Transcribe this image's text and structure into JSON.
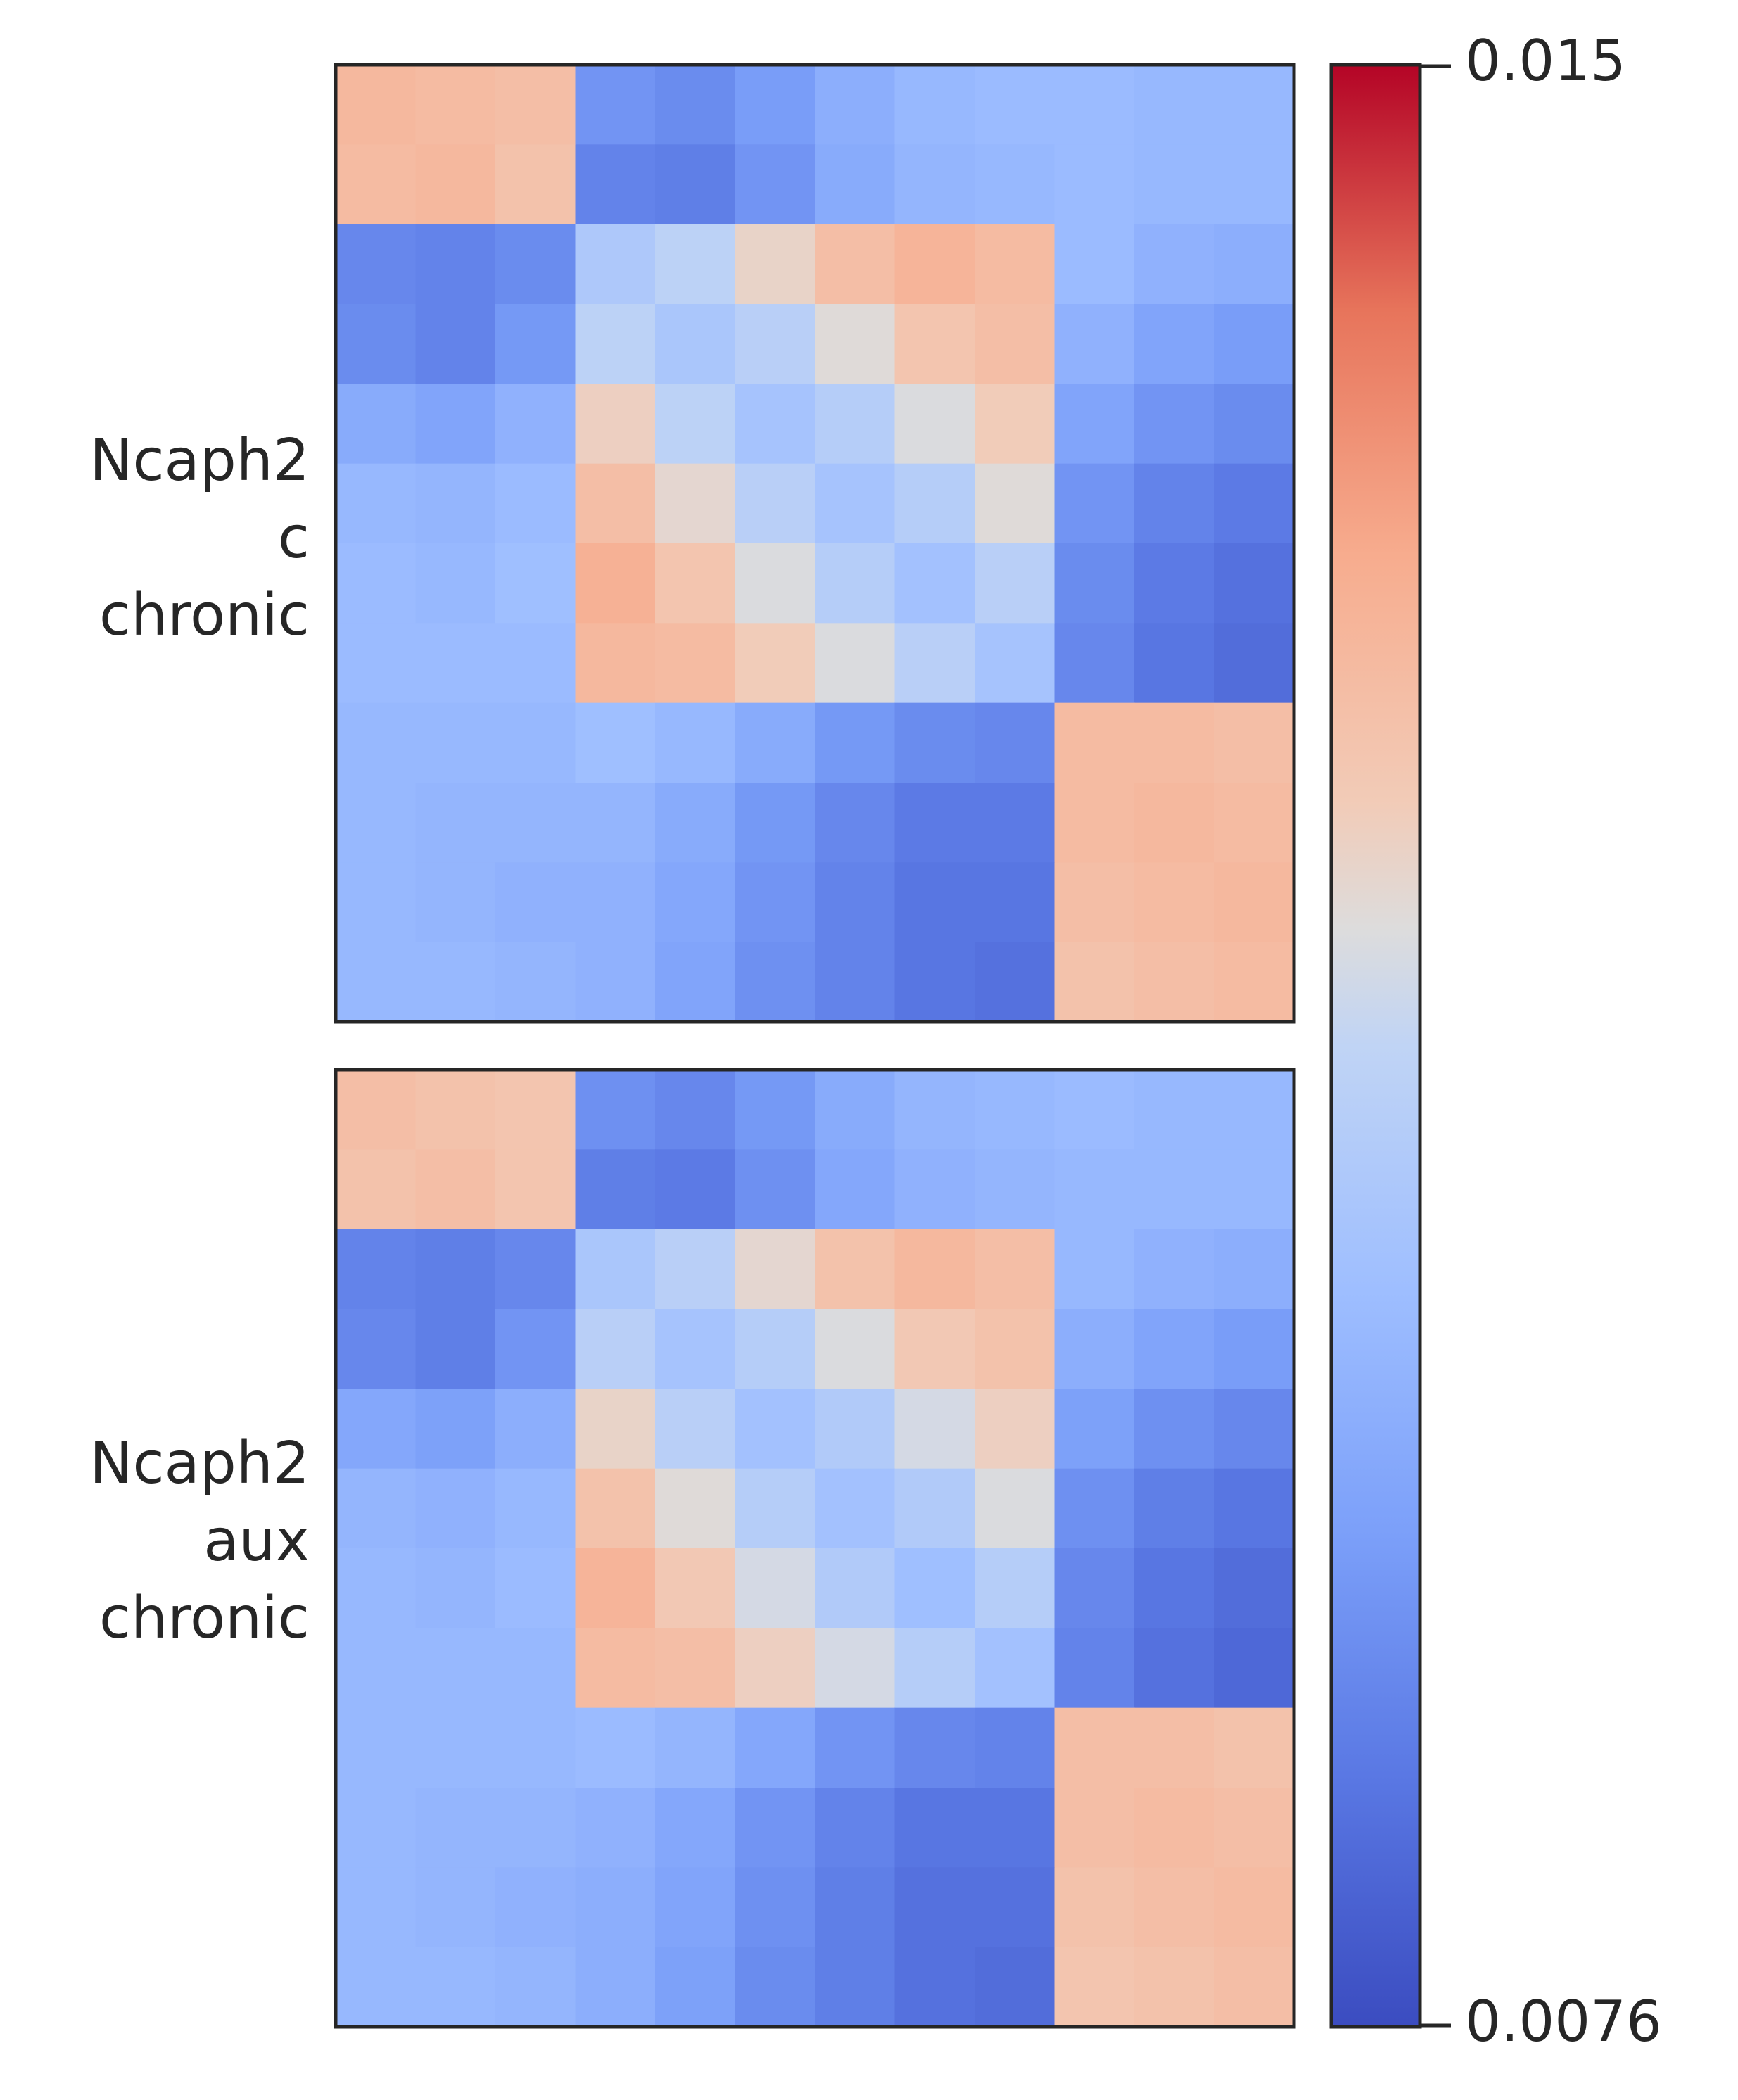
{
  "panels": [
    {
      "label_lines": [
        "Ncaph2",
        "c",
        "chronic"
      ]
    },
    {
      "label_lines": [
        "Ncaph2",
        "aux",
        "chronic"
      ]
    }
  ],
  "colorbar": {
    "max_label": "0.015",
    "min_label": "0.0076",
    "colormap": "coolwarm",
    "low_color": "#3b4cc0",
    "mid_color": "#dddddd",
    "high_color": "#b40426"
  },
  "chart_data": [
    {
      "type": "heatmap",
      "title": "",
      "row_label": "Ncaph2 c chronic",
      "xlabel": "",
      "ylabel": "",
      "vmin": 0.0076,
      "vmax": 0.015,
      "colormap": "coolwarm",
      "structure": "three-domain pileup (square domain top-left, triangular domain center with corner dots, square domain bottom-right)",
      "values_coarse": [
        [
          0.0128,
          0.0127,
          0.0126,
          0.0092,
          0.009,
          0.0094,
          0.0099,
          0.0102,
          0.0103,
          0.0103,
          0.0102,
          0.0102
        ],
        [
          0.0127,
          0.0128,
          0.0125,
          0.0088,
          0.0087,
          0.0092,
          0.0098,
          0.0101,
          0.0102,
          0.0103,
          0.0102,
          0.0102
        ],
        [
          0.0089,
          0.0088,
          0.009,
          0.0108,
          0.0112,
          0.012,
          0.0126,
          0.0129,
          0.0127,
          0.0103,
          0.01,
          0.0099
        ],
        [
          0.009,
          0.0088,
          0.0093,
          0.0112,
          0.0107,
          0.0111,
          0.0118,
          0.0124,
          0.0126,
          0.01,
          0.0096,
          0.0094
        ],
        [
          0.0098,
          0.0096,
          0.01,
          0.0121,
          0.0112,
          0.0106,
          0.011,
          0.0117,
          0.0122,
          0.0096,
          0.0092,
          0.009
        ],
        [
          0.0102,
          0.0101,
          0.0103,
          0.0126,
          0.0119,
          0.0111,
          0.0106,
          0.011,
          0.0118,
          0.0092,
          0.0088,
          0.0086
        ],
        [
          0.0103,
          0.0102,
          0.0104,
          0.013,
          0.0124,
          0.0117,
          0.011,
          0.0105,
          0.0111,
          0.009,
          0.0086,
          0.0084
        ],
        [
          0.0103,
          0.0103,
          0.0103,
          0.0128,
          0.0127,
          0.0122,
          0.0117,
          0.0111,
          0.0106,
          0.0089,
          0.0085,
          0.0083
        ],
        [
          0.0102,
          0.0102,
          0.0102,
          0.0104,
          0.0102,
          0.0098,
          0.0093,
          0.009,
          0.0089,
          0.0127,
          0.0127,
          0.0126
        ],
        [
          0.0102,
          0.0101,
          0.0101,
          0.0101,
          0.0098,
          0.0093,
          0.0089,
          0.0086,
          0.0086,
          0.0127,
          0.0128,
          0.0127
        ],
        [
          0.0102,
          0.0101,
          0.01,
          0.01,
          0.0097,
          0.0092,
          0.0088,
          0.0085,
          0.0085,
          0.0126,
          0.0127,
          0.0128
        ],
        [
          0.0102,
          0.0102,
          0.0101,
          0.01,
          0.0096,
          0.0091,
          0.0088,
          0.0085,
          0.0084,
          0.0125,
          0.0126,
          0.0127
        ]
      ]
    },
    {
      "type": "heatmap",
      "title": "",
      "row_label": "Ncaph2 aux chronic",
      "xlabel": "",
      "ylabel": "",
      "vmin": 0.0076,
      "vmax": 0.015,
      "colormap": "coolwarm",
      "structure": "three-domain pileup (square domain top-left, triangular domain center with corner dots, square domain bottom-right)",
      "values_coarse": [
        [
          0.0126,
          0.0125,
          0.0124,
          0.0091,
          0.0089,
          0.0093,
          0.0098,
          0.0101,
          0.0102,
          0.0103,
          0.0102,
          0.0102
        ],
        [
          0.0125,
          0.0126,
          0.0124,
          0.0087,
          0.0086,
          0.0091,
          0.0097,
          0.01,
          0.0101,
          0.0102,
          0.0102,
          0.0102
        ],
        [
          0.0088,
          0.0087,
          0.0089,
          0.0107,
          0.0111,
          0.0119,
          0.0125,
          0.0128,
          0.0126,
          0.0102,
          0.01,
          0.0099
        ],
        [
          0.0089,
          0.0087,
          0.0092,
          0.0111,
          0.0106,
          0.011,
          0.0117,
          0.0123,
          0.0125,
          0.0099,
          0.0096,
          0.0094
        ],
        [
          0.0097,
          0.0095,
          0.0099,
          0.012,
          0.0111,
          0.0105,
          0.0109,
          0.0116,
          0.0121,
          0.0095,
          0.0091,
          0.0089
        ],
        [
          0.0101,
          0.01,
          0.0102,
          0.0125,
          0.0118,
          0.011,
          0.0105,
          0.0109,
          0.0117,
          0.0091,
          0.0087,
          0.0085
        ],
        [
          0.0102,
          0.0101,
          0.0103,
          0.0129,
          0.0123,
          0.0116,
          0.0109,
          0.0104,
          0.011,
          0.0089,
          0.0085,
          0.0083
        ],
        [
          0.0102,
          0.0102,
          0.0102,
          0.0127,
          0.0126,
          0.0121,
          0.0116,
          0.011,
          0.0105,
          0.0088,
          0.0084,
          0.0082
        ],
        [
          0.0102,
          0.0102,
          0.0102,
          0.0103,
          0.0101,
          0.0097,
          0.0092,
          0.0089,
          0.0088,
          0.0126,
          0.0126,
          0.0125
        ],
        [
          0.0102,
          0.0101,
          0.0101,
          0.01,
          0.0097,
          0.0092,
          0.0088,
          0.0085,
          0.0085,
          0.0126,
          0.0127,
          0.0126
        ],
        [
          0.0102,
          0.0101,
          0.01,
          0.0099,
          0.0096,
          0.0091,
          0.0087,
          0.0084,
          0.0084,
          0.0125,
          0.0126,
          0.0127
        ],
        [
          0.0102,
          0.0102,
          0.0101,
          0.0099,
          0.0095,
          0.009,
          0.0087,
          0.0084,
          0.0083,
          0.0124,
          0.0125,
          0.0126
        ]
      ]
    }
  ]
}
